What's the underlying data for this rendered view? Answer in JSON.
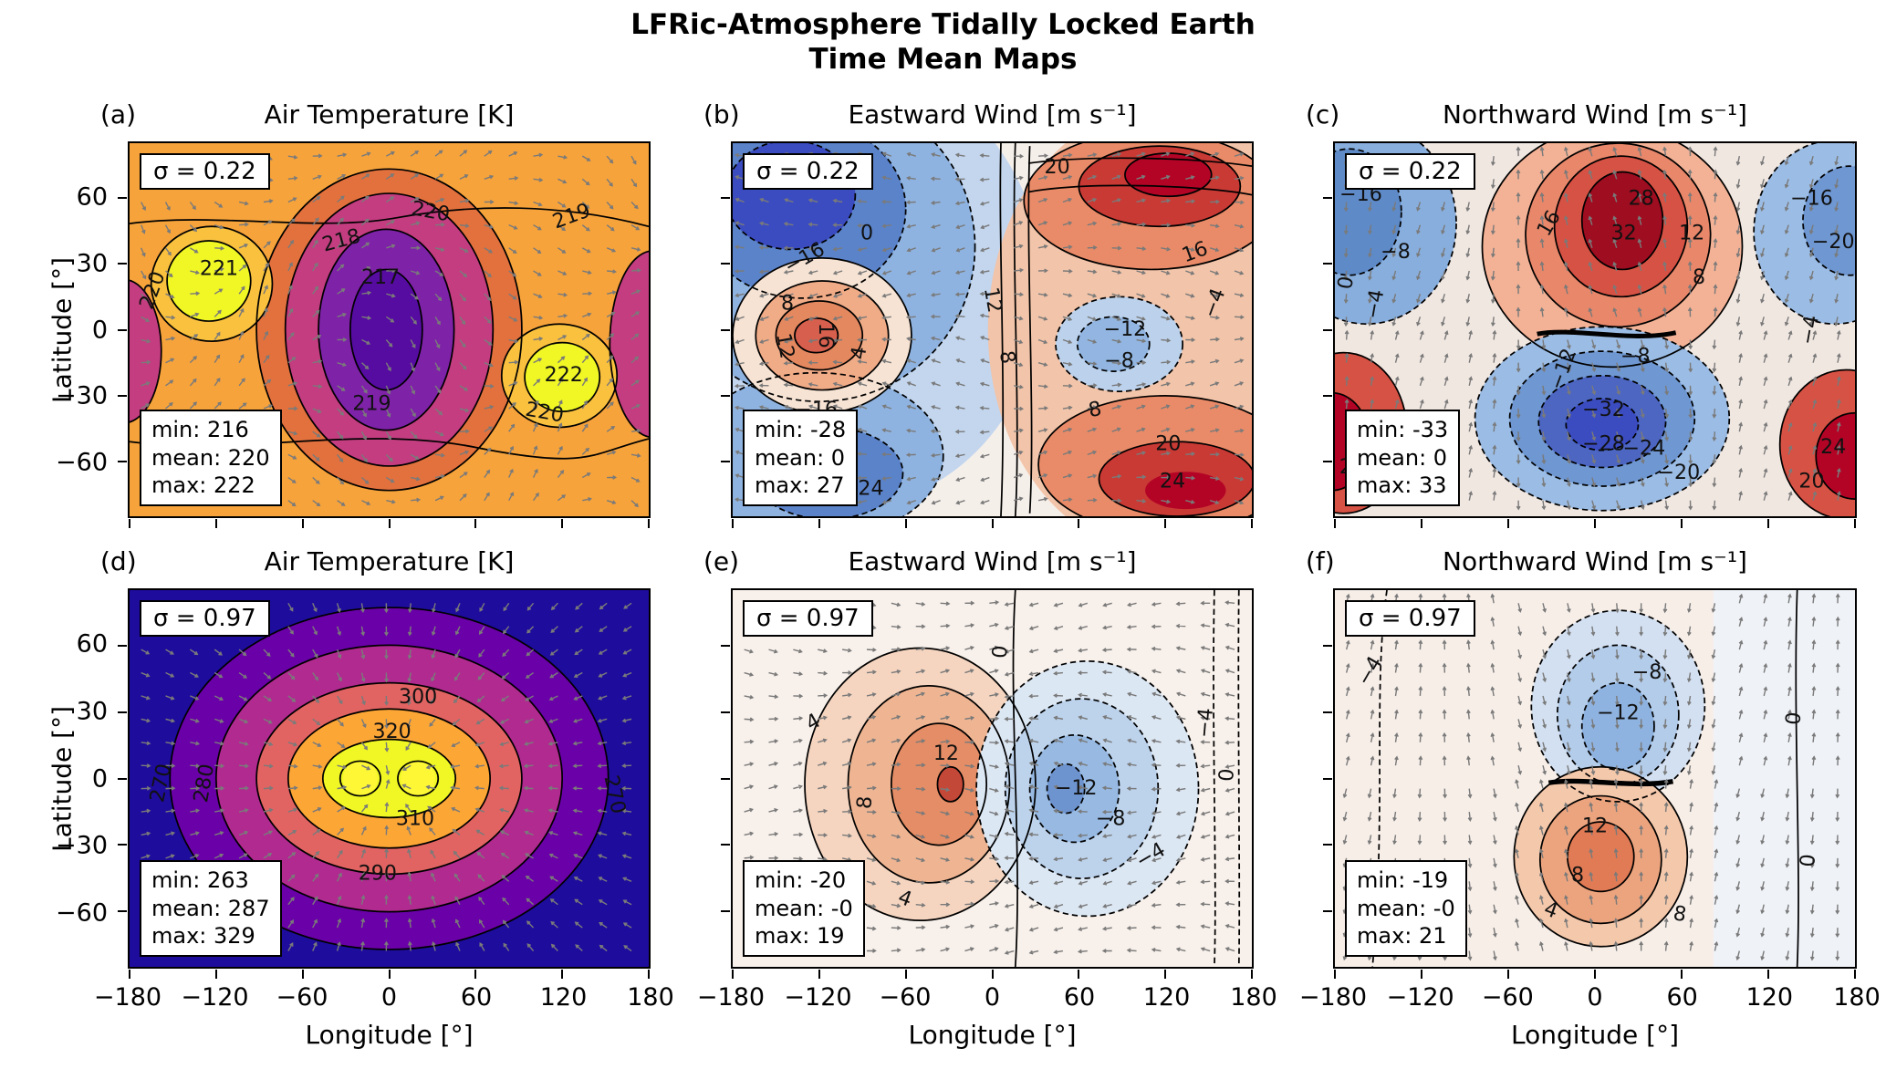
{
  "figure": {
    "suptitle": [
      "LFRic-Atmosphere Tidally Locked Earth",
      "Time Mean Maps"
    ]
  },
  "axes": {
    "xlabel": "Longitude [°]",
    "ylabel": "Latitude [°]",
    "x_ticks": [
      "−180",
      "−120",
      "−60",
      "0",
      "60",
      "120",
      "180"
    ],
    "y_ticks": [
      "60",
      "30",
      "0",
      "−30",
      "−60"
    ],
    "xlim": [
      -180,
      180
    ],
    "ylim": [
      -85,
      85
    ]
  },
  "palette": {
    "plasma_sequential": [
      "#0D0887",
      "#6A00A8",
      "#B12A90",
      "#E16462",
      "#FCA636",
      "#F0F724"
    ],
    "coolwarm_diverging": [
      "#3B4CC0",
      "#8FB3E0",
      "#F5EFEA",
      "#E98B68",
      "#B40426"
    ],
    "quiver_arrow": "#7a7a7a",
    "contour_line": "#000000"
  },
  "chart_data": [
    {
      "type": "heatmap",
      "subtype": "filled-contour-map-with-quiver",
      "panel_label": "(a)",
      "title": "Air Temperature [K]",
      "sigma_label": "σ = 0.22",
      "sigma": 0.22,
      "stats": {
        "min": 216,
        "mean": 220,
        "max": 222
      },
      "stats_lines": [
        "min: 216",
        "mean: 220",
        "max: 222"
      ],
      "contour_labels": [
        "220",
        "221",
        "218",
        "220",
        "219",
        "217",
        "219",
        "222",
        "220"
      ]
    },
    {
      "type": "heatmap",
      "subtype": "filled-contour-map-with-quiver",
      "panel_label": "(b)",
      "title": "Eastward Wind [m s⁻¹]",
      "sigma_label": "σ = 0.22",
      "sigma": 0.22,
      "stats": {
        "min": -28,
        "mean": 0,
        "max": 27
      },
      "stats_lines": [
        "min: -28",
        "mean: 0",
        "max: 27"
      ],
      "contour_labels": [
        "0",
        "−16",
        "8",
        "16",
        "12",
        "4",
        "−16",
        "12",
        "8",
        "20",
        "−4",
        "−12",
        "−8",
        "8",
        "20",
        "24",
        "−24",
        "16"
      ]
    },
    {
      "type": "heatmap",
      "subtype": "filled-contour-map-with-quiver",
      "panel_label": "(c)",
      "title": "Northward Wind [m s⁻¹]",
      "sigma_label": "σ = 0.22",
      "sigma": 0.22,
      "stats": {
        "min": -33,
        "mean": 0,
        "max": 33
      },
      "stats_lines": [
        "min: -33",
        "mean: 0",
        "max: 33"
      ],
      "contour_labels": [
        "−16",
        "−8",
        "0",
        "−4",
        "16",
        "28",
        "32",
        "12",
        "8",
        "−16",
        "−20",
        "−4",
        "−8",
        "−12",
        "−32",
        "−28",
        "−24",
        "−20",
        "24",
        "20",
        "24",
        "20"
      ]
    },
    {
      "type": "heatmap",
      "subtype": "filled-contour-map-with-quiver",
      "panel_label": "(d)",
      "title": "Air Temperature [K]",
      "sigma_label": "σ = 0.97",
      "sigma": 0.97,
      "stats": {
        "min": 263,
        "mean": 287,
        "max": 329
      },
      "stats_lines": [
        "min: 263",
        "mean: 287",
        "max: 329"
      ],
      "contour_labels": [
        "270",
        "280",
        "300",
        "320",
        "310",
        "290",
        "270"
      ]
    },
    {
      "type": "heatmap",
      "subtype": "filled-contour-map-with-quiver",
      "panel_label": "(e)",
      "title": "Eastward Wind [m s⁻¹]",
      "sigma_label": "σ = 0.97",
      "sigma": 0.97,
      "stats": {
        "min": -20,
        "mean": "-0",
        "max": 19
      },
      "stats_lines": [
        "min: -20",
        "mean: -0",
        "max: 19"
      ],
      "contour_labels": [
        "0",
        "4",
        "8",
        "12",
        "4",
        "−12",
        "−8",
        "−4",
        "−4",
        "0"
      ]
    },
    {
      "type": "heatmap",
      "subtype": "filled-contour-map-with-quiver",
      "panel_label": "(f)",
      "title": "Northward Wind [m s⁻¹]",
      "sigma_label": "σ = 0.97",
      "sigma": 0.97,
      "stats": {
        "min": -19,
        "mean": "-0",
        "max": 21
      },
      "stats_lines": [
        "min: -19",
        "mean: -0",
        "max: 21"
      ],
      "contour_labels": [
        "−4",
        "−8",
        "−12",
        "12",
        "8",
        "4",
        "0",
        "0",
        "8"
      ]
    }
  ]
}
